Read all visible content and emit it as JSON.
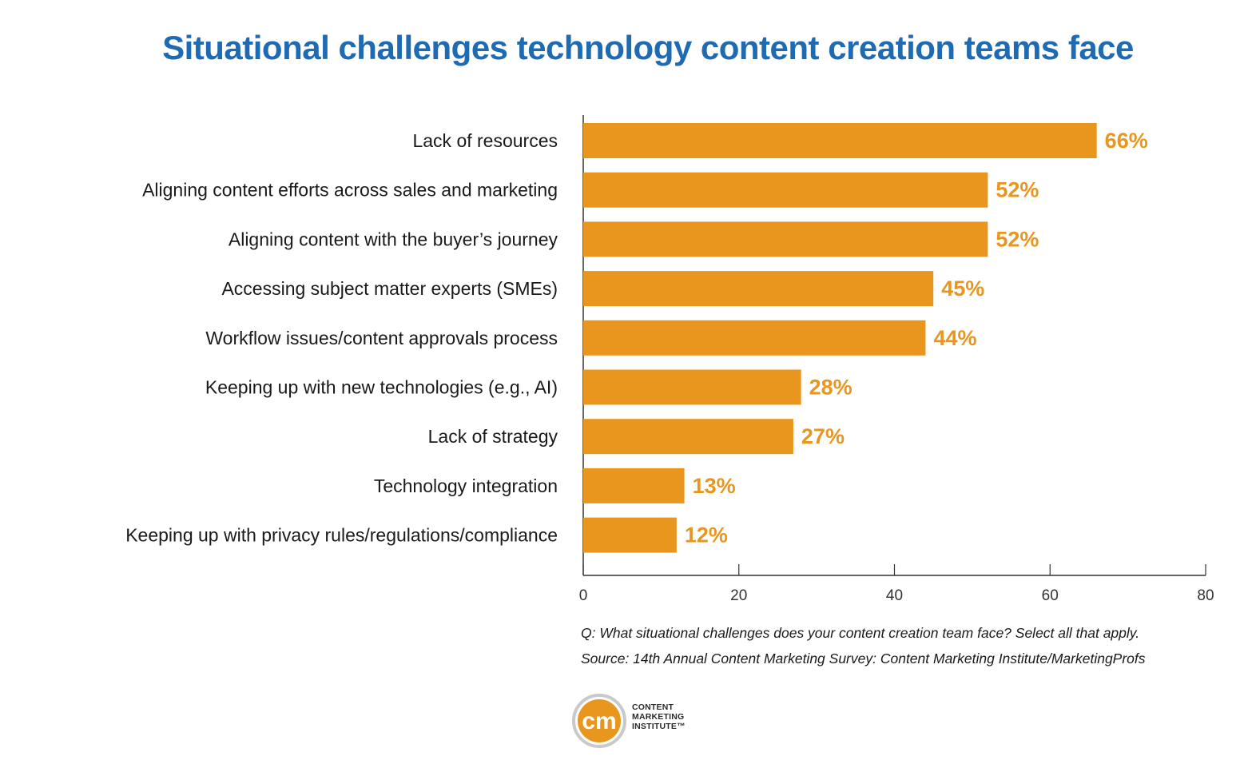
{
  "chart_data": {
    "type": "bar",
    "orientation": "horizontal",
    "title": "Situational challenges technology content creation teams face",
    "categories": [
      "Lack of resources",
      "Aligning content efforts across sales and marketing",
      "Aligning content with the buyer’s journey",
      "Accessing subject matter experts (SMEs)",
      "Workflow issues/content approvals process",
      "Keeping up with new technologies (e.g., AI)",
      "Lack of strategy",
      "Technology integration",
      "Keeping up with privacy rules/regulations/compliance"
    ],
    "values": [
      66,
      52,
      52,
      45,
      44,
      28,
      27,
      13,
      12
    ],
    "value_labels": [
      "66%",
      "52%",
      "52%",
      "45%",
      "44%",
      "28%",
      "27%",
      "13%",
      "12%"
    ],
    "xlim": [
      0,
      80
    ],
    "xticks": [
      0,
      20,
      40,
      60,
      80
    ],
    "grid": false,
    "legend": "none",
    "bar_color": "#e8961e",
    "label_color": "#e8961e"
  },
  "notes": {
    "question": "Q: What situational challenges does your content creation team face? Select all that apply.",
    "source": "Source: 14th Annual Content Marketing Survey: Content Marketing Institute/MarketingProfs"
  },
  "logo": {
    "mark": "cm",
    "line1": "CONTENT",
    "line2": "MARKETING",
    "line3": "INSTITUTE™",
    "color": "#e8961e"
  }
}
